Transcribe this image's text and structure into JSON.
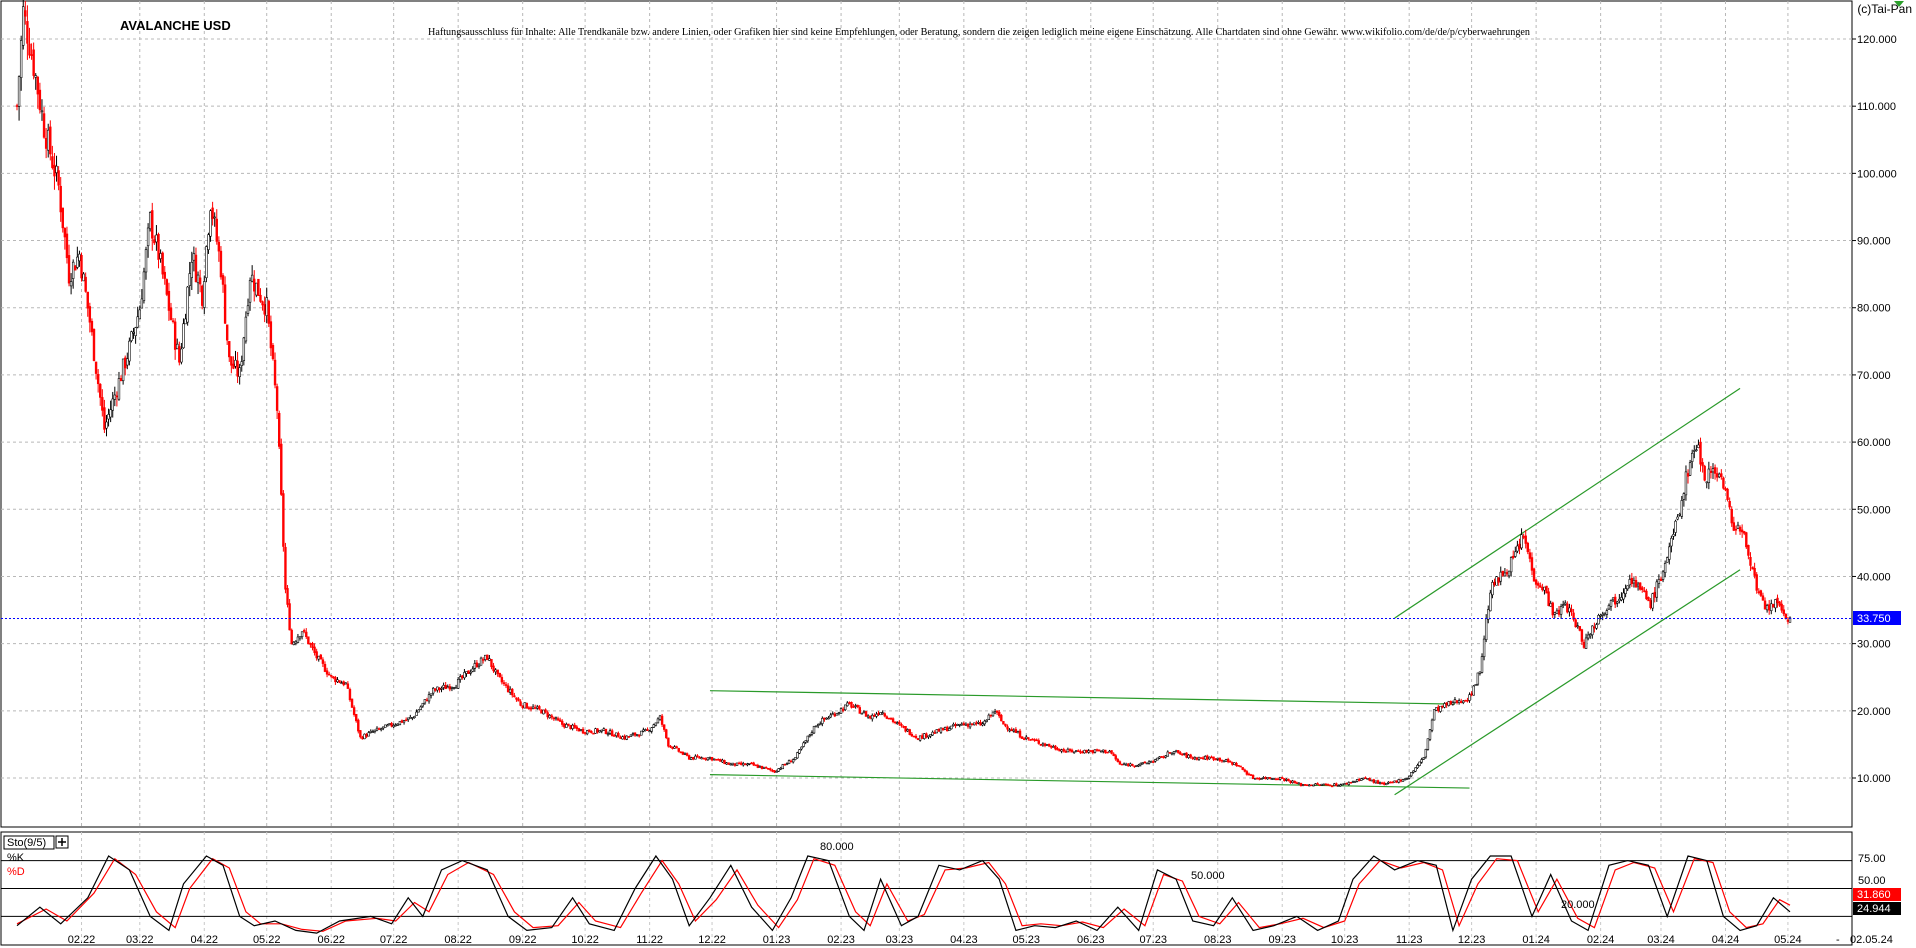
{
  "app": {
    "copyright": "(c)Tai-Pan"
  },
  "chart_data": {
    "type": "candlestick",
    "title": "AVALANCHE USD",
    "disclaimer": "Haftungsausschluss für Inhalte: Alle Trendkanäle bzw. andere Linien, oder Grafiken hier sind keine Empfehlungen, oder Beratung, sondern die zeigen lediglich meine eigene Einschätzung. Alle Chartdaten sind ohne Gewähr. www.wikifolio.com/de/de/p/cyberwaehrungen",
    "y_ticks": [
      "10.000",
      "20.000",
      "30.000",
      "40.000",
      "50.000",
      "60.000",
      "70.000",
      "80.000",
      "90.000",
      "100.000",
      "110.000",
      "120.000"
    ],
    "ylim": [
      0,
      124
    ],
    "x_ticks": [
      "02.22",
      "03.22",
      "04.22",
      "05.22",
      "06.22",
      "07.22",
      "08.22",
      "09.22",
      "10.22",
      "11.22",
      "12.22",
      "01.23",
      "02.23",
      "03.23",
      "04.23",
      "05.23",
      "06.23",
      "07.23",
      "08.23",
      "09.23",
      "10.23",
      "11.23",
      "12.23",
      "01.24",
      "02.24",
      "03.24",
      "04.24",
      "05.24"
    ],
    "x_end_label": "02.05.24",
    "x_end_dash": "-",
    "last_price": 33.75,
    "last_price_label": "33.750",
    "price_path": [
      [
        "2022-01-01",
        110
      ],
      [
        "2022-01-04",
        124
      ],
      [
        "2022-01-08",
        118
      ],
      [
        "2022-01-14",
        107
      ],
      [
        "2022-01-21",
        98
      ],
      [
        "2022-01-26",
        85
      ],
      [
        "2022-01-31",
        88
      ],
      [
        "2022-02-05",
        78
      ],
      [
        "2022-02-12",
        62
      ],
      [
        "2022-02-18",
        68
      ],
      [
        "2022-02-24",
        74
      ],
      [
        "2022-03-01",
        80
      ],
      [
        "2022-03-06",
        93
      ],
      [
        "2022-03-10",
        88
      ],
      [
        "2022-03-15",
        80
      ],
      [
        "2022-03-20",
        72
      ],
      [
        "2022-03-26",
        88
      ],
      [
        "2022-03-31",
        82
      ],
      [
        "2022-04-04",
        96
      ],
      [
        "2022-04-09",
        86
      ],
      [
        "2022-04-13",
        72
      ],
      [
        "2022-04-18",
        70
      ],
      [
        "2022-04-23",
        85
      ],
      [
        "2022-05-01",
        80
      ],
      [
        "2022-05-06",
        65
      ],
      [
        "2022-05-10",
        38
      ],
      [
        "2022-05-13",
        30
      ],
      [
        "2022-05-18",
        32
      ],
      [
        "2022-05-25",
        28
      ],
      [
        "2022-06-01",
        25
      ],
      [
        "2022-06-08",
        24
      ],
      [
        "2022-06-15",
        16
      ],
      [
        "2022-06-22",
        17
      ],
      [
        "2022-07-01",
        18
      ],
      [
        "2022-07-10",
        19
      ],
      [
        "2022-07-20",
        23
      ],
      [
        "2022-07-31",
        24
      ],
      [
        "2022-08-10",
        27
      ],
      [
        "2022-08-15",
        28
      ],
      [
        "2022-08-20",
        25
      ],
      [
        "2022-08-31",
        21
      ],
      [
        "2022-09-10",
        20
      ],
      [
        "2022-09-20",
        18
      ],
      [
        "2022-09-30",
        17
      ],
      [
        "2022-10-10",
        17
      ],
      [
        "2022-10-20",
        16
      ],
      [
        "2022-10-31",
        17
      ],
      [
        "2022-11-06",
        19
      ],
      [
        "2022-11-10",
        15
      ],
      [
        "2022-11-20",
        13
      ],
      [
        "2022-11-30",
        13
      ],
      [
        "2022-12-10",
        12
      ],
      [
        "2022-12-20",
        12
      ],
      [
        "2022-12-31",
        11
      ],
      [
        "2023-01-10",
        13
      ],
      [
        "2023-01-20",
        18
      ],
      [
        "2023-01-31",
        20
      ],
      [
        "2023-02-05",
        21
      ],
      [
        "2023-02-10",
        20
      ],
      [
        "2023-02-15",
        19
      ],
      [
        "2023-02-20",
        20
      ],
      [
        "2023-02-28",
        18
      ],
      [
        "2023-03-10",
        16
      ],
      [
        "2023-03-20",
        17
      ],
      [
        "2023-03-31",
        18
      ],
      [
        "2023-04-10",
        18
      ],
      [
        "2023-04-16",
        20
      ],
      [
        "2023-04-20",
        18
      ],
      [
        "2023-04-30",
        16
      ],
      [
        "2023-05-10",
        15
      ],
      [
        "2023-05-20",
        14
      ],
      [
        "2023-05-31",
        14
      ],
      [
        "2023-06-10",
        14
      ],
      [
        "2023-06-15",
        12
      ],
      [
        "2023-06-25",
        12
      ],
      [
        "2023-07-05",
        13
      ],
      [
        "2023-07-10",
        14
      ],
      [
        "2023-07-20",
        13
      ],
      [
        "2023-07-31",
        13
      ],
      [
        "2023-08-10",
        12
      ],
      [
        "2023-08-18",
        10
      ],
      [
        "2023-08-31",
        10
      ],
      [
        "2023-09-10",
        9
      ],
      [
        "2023-09-20",
        9
      ],
      [
        "2023-09-30",
        9
      ],
      [
        "2023-10-10",
        10
      ],
      [
        "2023-10-20",
        9
      ],
      [
        "2023-10-31",
        10
      ],
      [
        "2023-11-08",
        13
      ],
      [
        "2023-11-13",
        20
      ],
      [
        "2023-11-20",
        21
      ],
      [
        "2023-11-30",
        22
      ],
      [
        "2023-12-05",
        26
      ],
      [
        "2023-12-10",
        38
      ],
      [
        "2023-12-15",
        40
      ],
      [
        "2023-12-20",
        42
      ],
      [
        "2023-12-26",
        46
      ],
      [
        "2023-12-31",
        40
      ],
      [
        "2024-01-05",
        38
      ],
      [
        "2024-01-10",
        34
      ],
      [
        "2024-01-15",
        36
      ],
      [
        "2024-01-20",
        33
      ],
      [
        "2024-01-24",
        30
      ],
      [
        "2024-01-31",
        34
      ],
      [
        "2024-02-05",
        36
      ],
      [
        "2024-02-10",
        37
      ],
      [
        "2024-02-15",
        40
      ],
      [
        "2024-02-20",
        38
      ],
      [
        "2024-02-25",
        36
      ],
      [
        "2024-03-01",
        40
      ],
      [
        "2024-03-06",
        45
      ],
      [
        "2024-03-10",
        50
      ],
      [
        "2024-03-14",
        56
      ],
      [
        "2024-03-18",
        60
      ],
      [
        "2024-03-22",
        55
      ],
      [
        "2024-03-27",
        56
      ],
      [
        "2024-03-31",
        54
      ],
      [
        "2024-04-04",
        48
      ],
      [
        "2024-04-08",
        47
      ],
      [
        "2024-04-12",
        44
      ],
      [
        "2024-04-16",
        38
      ],
      [
        "2024-04-20",
        35
      ],
      [
        "2024-04-25",
        36
      ],
      [
        "2024-04-30",
        34
      ],
      [
        "2024-05-02",
        33.75
      ]
    ],
    "trend_lines": [
      {
        "from": [
          "2022-11-30",
          23
        ],
        "to": [
          "2023-11-23",
          21
        ]
      },
      {
        "from": [
          "2022-11-30",
          10.5
        ],
        "to": [
          "2023-11-30",
          8.5
        ]
      },
      {
        "from": [
          "2023-10-25",
          33.8
        ],
        "to": [
          "2024-04-08",
          68
        ]
      },
      {
        "from": [
          "2023-10-25",
          7.5
        ],
        "to": [
          "2024-04-08",
          41
        ]
      }
    ],
    "trend_line_color": "#2a9a2a",
    "up_color": "#000000",
    "down_color": "#ff0000",
    "price_line_color": "#0000ff",
    "grid": true,
    "indicator": {
      "label": "Sto(9/5)",
      "k_label": "%K",
      "d_label": "%D",
      "k_color": "#000000",
      "d_color": "#ff0000",
      "ticks": [
        "75.00",
        "50.00"
      ],
      "level_labels": [
        "80.000",
        "50.000",
        "20.000"
      ],
      "k_value": 24.944,
      "k_value_label": "24.944",
      "d_value": 31.86,
      "d_value_label": "31.860",
      "ylim": [
        0,
        100
      ],
      "k_path": [
        [
          "2022-01-01",
          10
        ],
        [
          "2022-01-12",
          30
        ],
        [
          "2022-01-22",
          12
        ],
        [
          "2022-02-04",
          40
        ],
        [
          "2022-02-14",
          85
        ],
        [
          "2022-02-24",
          70
        ],
        [
          "2022-03-06",
          20
        ],
        [
          "2022-03-15",
          5
        ],
        [
          "2022-03-22",
          55
        ],
        [
          "2022-04-02",
          85
        ],
        [
          "2022-04-10",
          75
        ],
        [
          "2022-04-18",
          20
        ],
        [
          "2022-04-25",
          10
        ],
        [
          "2022-05-05",
          15
        ],
        [
          "2022-05-15",
          5
        ],
        [
          "2022-05-25",
          2
        ],
        [
          "2022-06-05",
          15
        ],
        [
          "2022-06-20",
          20
        ],
        [
          "2022-06-30",
          12
        ],
        [
          "2022-07-08",
          40
        ],
        [
          "2022-07-15",
          20
        ],
        [
          "2022-07-24",
          70
        ],
        [
          "2022-08-03",
          80
        ],
        [
          "2022-08-15",
          70
        ],
        [
          "2022-08-25",
          20
        ],
        [
          "2022-09-03",
          5
        ],
        [
          "2022-09-15",
          8
        ],
        [
          "2022-09-25",
          40
        ],
        [
          "2022-10-03",
          12
        ],
        [
          "2022-10-15",
          5
        ],
        [
          "2022-10-25",
          50
        ],
        [
          "2022-11-04",
          85
        ],
        [
          "2022-11-12",
          60
        ],
        [
          "2022-11-20",
          10
        ],
        [
          "2022-11-30",
          40
        ],
        [
          "2022-12-10",
          75
        ],
        [
          "2022-12-20",
          30
        ],
        [
          "2022-12-30",
          5
        ],
        [
          "2023-01-08",
          40
        ],
        [
          "2023-01-16",
          85
        ],
        [
          "2023-01-26",
          80
        ],
        [
          "2023-02-05",
          20
        ],
        [
          "2023-02-12",
          5
        ],
        [
          "2023-02-20",
          60
        ],
        [
          "2023-03-02",
          10
        ],
        [
          "2023-03-10",
          20
        ],
        [
          "2023-03-20",
          75
        ],
        [
          "2023-03-30",
          70
        ],
        [
          "2023-04-10",
          80
        ],
        [
          "2023-04-18",
          60
        ],
        [
          "2023-04-26",
          5
        ],
        [
          "2023-05-05",
          10
        ],
        [
          "2023-05-15",
          8
        ],
        [
          "2023-05-25",
          15
        ],
        [
          "2023-06-04",
          5
        ],
        [
          "2023-06-14",
          30
        ],
        [
          "2023-06-24",
          5
        ],
        [
          "2023-07-03",
          70
        ],
        [
          "2023-07-12",
          60
        ],
        [
          "2023-07-20",
          15
        ],
        [
          "2023-07-30",
          10
        ],
        [
          "2023-08-08",
          40
        ],
        [
          "2023-08-18",
          5
        ],
        [
          "2023-08-28",
          10
        ],
        [
          "2023-09-08",
          20
        ],
        [
          "2023-09-18",
          5
        ],
        [
          "2023-09-28",
          15
        ],
        [
          "2023-10-05",
          60
        ],
        [
          "2023-10-15",
          85
        ],
        [
          "2023-10-25",
          70
        ],
        [
          "2023-11-05",
          80
        ],
        [
          "2023-11-14",
          75
        ],
        [
          "2023-11-22",
          5
        ],
        [
          "2023-12-01",
          60
        ],
        [
          "2023-12-10",
          85
        ],
        [
          "2023-12-20",
          85
        ],
        [
          "2023-12-30",
          20
        ],
        [
          "2024-01-08",
          65
        ],
        [
          "2024-01-18",
          15
        ],
        [
          "2024-01-26",
          5
        ],
        [
          "2024-02-05",
          75
        ],
        [
          "2024-02-14",
          80
        ],
        [
          "2024-02-24",
          75
        ],
        [
          "2024-03-04",
          20
        ],
        [
          "2024-03-14",
          85
        ],
        [
          "2024-03-23",
          80
        ],
        [
          "2024-03-31",
          20
        ],
        [
          "2024-04-08",
          5
        ],
        [
          "2024-04-16",
          10
        ],
        [
          "2024-04-24",
          40
        ],
        [
          "2024-05-02",
          25
        ]
      ],
      "d_path": [
        [
          "2022-01-01",
          12
        ],
        [
          "2022-01-15",
          28
        ],
        [
          "2022-01-25",
          15
        ],
        [
          "2022-02-07",
          45
        ],
        [
          "2022-02-17",
          82
        ],
        [
          "2022-02-27",
          65
        ],
        [
          "2022-03-09",
          25
        ],
        [
          "2022-03-18",
          8
        ],
        [
          "2022-03-25",
          50
        ],
        [
          "2022-04-05",
          82
        ],
        [
          "2022-04-13",
          72
        ],
        [
          "2022-04-21",
          25
        ],
        [
          "2022-04-28",
          12
        ],
        [
          "2022-05-08",
          12
        ],
        [
          "2022-05-18",
          6
        ],
        [
          "2022-05-28",
          4
        ],
        [
          "2022-06-08",
          15
        ],
        [
          "2022-06-23",
          18
        ],
        [
          "2022-07-02",
          15
        ],
        [
          "2022-07-11",
          35
        ],
        [
          "2022-07-18",
          25
        ],
        [
          "2022-07-27",
          65
        ],
        [
          "2022-08-06",
          78
        ],
        [
          "2022-08-18",
          65
        ],
        [
          "2022-08-28",
          25
        ],
        [
          "2022-09-06",
          8
        ],
        [
          "2022-09-18",
          10
        ],
        [
          "2022-09-28",
          35
        ],
        [
          "2022-10-06",
          15
        ],
        [
          "2022-10-18",
          8
        ],
        [
          "2022-10-28",
          45
        ],
        [
          "2022-11-07",
          80
        ],
        [
          "2022-11-15",
          55
        ],
        [
          "2022-11-23",
          15
        ],
        [
          "2022-12-03",
          38
        ],
        [
          "2022-12-13",
          70
        ],
        [
          "2022-12-23",
          32
        ],
        [
          "2023-01-02",
          8
        ],
        [
          "2023-01-11",
          38
        ],
        [
          "2023-01-19",
          82
        ],
        [
          "2023-01-29",
          75
        ],
        [
          "2023-02-08",
          25
        ],
        [
          "2023-02-15",
          10
        ],
        [
          "2023-02-23",
          55
        ],
        [
          "2023-03-05",
          15
        ],
        [
          "2023-03-13",
          22
        ],
        [
          "2023-03-23",
          70
        ],
        [
          "2023-04-02",
          72
        ],
        [
          "2023-04-13",
          78
        ],
        [
          "2023-04-21",
          55
        ],
        [
          "2023-04-29",
          10
        ],
        [
          "2023-05-08",
          12
        ],
        [
          "2023-05-18",
          10
        ],
        [
          "2023-05-28",
          14
        ],
        [
          "2023-06-07",
          8
        ],
        [
          "2023-06-17",
          28
        ],
        [
          "2023-06-27",
          10
        ],
        [
          "2023-07-06",
          65
        ],
        [
          "2023-07-15",
          58
        ],
        [
          "2023-07-23",
          20
        ],
        [
          "2023-08-02",
          12
        ],
        [
          "2023-08-11",
          35
        ],
        [
          "2023-08-21",
          8
        ],
        [
          "2023-08-31",
          12
        ],
        [
          "2023-09-11",
          18
        ],
        [
          "2023-09-21",
          8
        ],
        [
          "2023-10-01",
          15
        ],
        [
          "2023-10-08",
          55
        ],
        [
          "2023-10-18",
          80
        ],
        [
          "2023-10-28",
          72
        ],
        [
          "2023-11-08",
          78
        ],
        [
          "2023-11-17",
          70
        ],
        [
          "2023-11-25",
          10
        ],
        [
          "2023-12-04",
          55
        ],
        [
          "2023-12-13",
          82
        ],
        [
          "2023-12-23",
          80
        ],
        [
          "2024-01-02",
          25
        ],
        [
          "2024-01-11",
          60
        ],
        [
          "2024-01-21",
          18
        ],
        [
          "2024-01-29",
          8
        ],
        [
          "2024-02-08",
          70
        ],
        [
          "2024-02-17",
          78
        ],
        [
          "2024-02-27",
          72
        ],
        [
          "2024-03-07",
          25
        ],
        [
          "2024-03-17",
          82
        ],
        [
          "2024-03-26",
          78
        ],
        [
          "2024-04-03",
          25
        ],
        [
          "2024-04-11",
          8
        ],
        [
          "2024-04-19",
          12
        ],
        [
          "2024-04-27",
          38
        ],
        [
          "2024-05-02",
          32
        ]
      ]
    }
  }
}
